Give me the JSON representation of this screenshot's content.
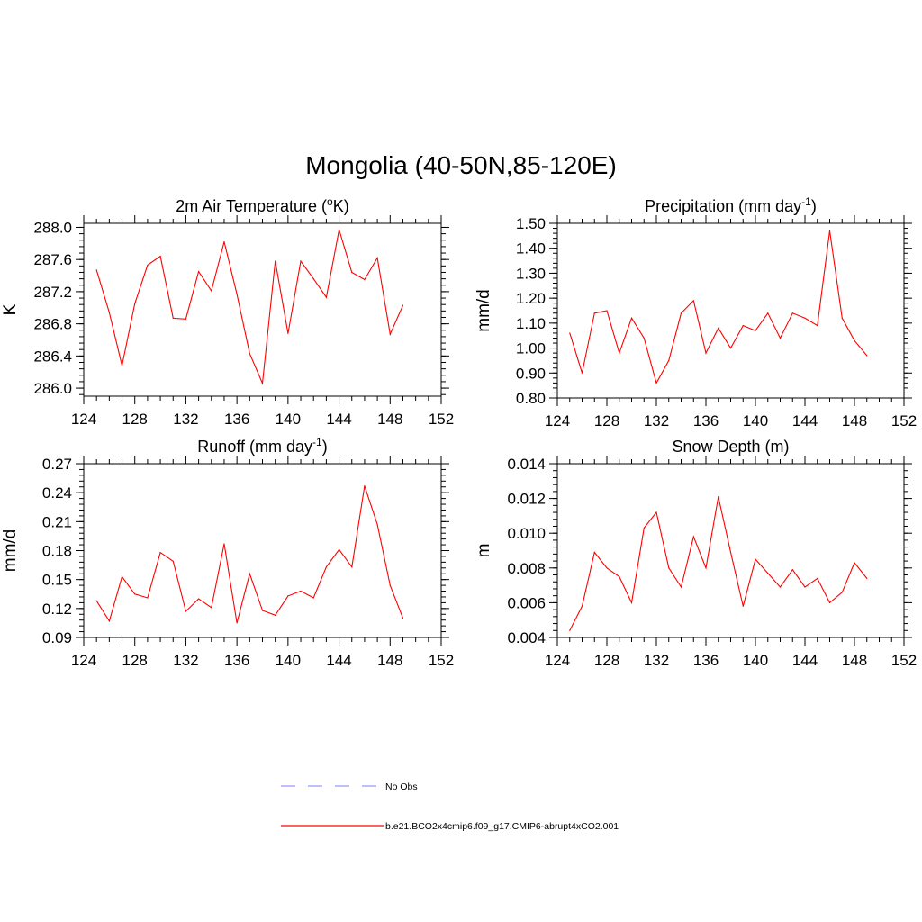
{
  "figure": {
    "title": "Mongolia (40-50N,85-120E)",
    "line_color": "#ff0000",
    "obs_color": "#9999ff"
  },
  "legend": {
    "entries": [
      {
        "label": "No Obs",
        "color": "#9999ff",
        "style": "dashed"
      },
      {
        "label": "b.e21.BCO2x4cmip6.f09_g17.CMIP6-abrupt4xCO2.001",
        "color": "#ff0000",
        "style": "solid"
      }
    ]
  },
  "chart_data": [
    {
      "type": "line",
      "title": "2m Air Temperature (",
      "title_sup": "o",
      "title_suffix": "K)",
      "ylabel": "K",
      "xlim": [
        124,
        152
      ],
      "ylim": [
        285.9,
        288.05
      ],
      "xticks": [
        "124",
        "128",
        "132",
        "136",
        "140",
        "144",
        "148",
        "152"
      ],
      "yticks": [
        "286.0",
        "286.4",
        "286.8",
        "287.2",
        "287.6",
        "288.0"
      ],
      "series": [
        {
          "x": [
            125,
            126,
            127,
            128,
            129,
            130,
            131,
            132,
            133,
            134,
            135,
            136,
            137,
            138,
            139,
            140,
            141,
            142,
            143,
            144,
            145,
            146,
            147,
            148,
            149
          ],
          "values": [
            287.47,
            286.94,
            286.28,
            287.05,
            287.53,
            287.64,
            286.87,
            286.86,
            287.45,
            287.21,
            287.82,
            287.17,
            286.43,
            286.06,
            287.58,
            286.68,
            287.58,
            287.36,
            287.13,
            287.97,
            287.44,
            287.35,
            287.62,
            286.67,
            287.03
          ]
        }
      ]
    },
    {
      "type": "line",
      "title": "Precipitation (mm day",
      "title_sup": "-1",
      "title_suffix": ")",
      "ylabel": "mm/d",
      "xlim": [
        124,
        152
      ],
      "ylim": [
        0.8,
        1.5
      ],
      "xticks": [
        "124",
        "128",
        "132",
        "136",
        "140",
        "144",
        "148",
        "152"
      ],
      "yticks": [
        "0.80",
        "0.90",
        "1.00",
        "1.10",
        "1.20",
        "1.30",
        "1.40",
        "1.50"
      ],
      "series": [
        {
          "x": [
            125,
            126,
            127,
            128,
            129,
            130,
            131,
            132,
            133,
            134,
            135,
            136,
            137,
            138,
            139,
            140,
            141,
            142,
            143,
            144,
            145,
            146,
            147,
            148,
            149
          ],
          "values": [
            1.06,
            0.9,
            1.14,
            1.15,
            0.98,
            1.12,
            1.04,
            0.86,
            0.95,
            1.14,
            1.19,
            0.98,
            1.08,
            1.0,
            1.09,
            1.07,
            1.14,
            1.04,
            1.14,
            1.12,
            1.09,
            1.47,
            1.12,
            1.03,
            0.97
          ]
        }
      ]
    },
    {
      "type": "line",
      "title": "Runoff (mm day",
      "title_sup": "-1",
      "title_suffix": ")",
      "ylabel": "mm/d",
      "xlim": [
        124,
        152
      ],
      "ylim": [
        0.09,
        0.27
      ],
      "xticks": [
        "124",
        "128",
        "132",
        "136",
        "140",
        "144",
        "148",
        "152"
      ],
      "yticks": [
        "0.09",
        "0.12",
        "0.15",
        "0.18",
        "0.21",
        "0.24",
        "0.27"
      ],
      "series": [
        {
          "x": [
            125,
            126,
            127,
            128,
            129,
            130,
            131,
            132,
            133,
            134,
            135,
            136,
            137,
            138,
            139,
            140,
            141,
            142,
            143,
            144,
            145,
            146,
            147,
            148,
            149
          ],
          "values": [
            0.128,
            0.107,
            0.153,
            0.135,
            0.131,
            0.178,
            0.169,
            0.117,
            0.13,
            0.121,
            0.187,
            0.105,
            0.156,
            0.118,
            0.113,
            0.133,
            0.138,
            0.131,
            0.163,
            0.181,
            0.163,
            0.247,
            0.207,
            0.144,
            0.11
          ]
        }
      ]
    },
    {
      "type": "line",
      "title": "Snow Depth (m)",
      "title_sup": "",
      "title_suffix": "",
      "ylabel": "m",
      "xlim": [
        124,
        152
      ],
      "ylim": [
        0.004,
        0.014
      ],
      "xticks": [
        "124",
        "128",
        "132",
        "136",
        "140",
        "144",
        "148",
        "152"
      ],
      "yticks": [
        "0.004",
        "0.006",
        "0.008",
        "0.010",
        "0.012",
        "0.014"
      ],
      "series": [
        {
          "x": [
            125,
            126,
            127,
            128,
            129,
            130,
            131,
            132,
            133,
            134,
            135,
            136,
            137,
            138,
            139,
            140,
            141,
            142,
            143,
            144,
            145,
            146,
            147,
            148,
            149
          ],
          "values": [
            0.0044,
            0.0058,
            0.0089,
            0.008,
            0.0075,
            0.006,
            0.0103,
            0.0112,
            0.008,
            0.0069,
            0.0098,
            0.008,
            0.0121,
            0.0089,
            0.0058,
            0.0085,
            0.0077,
            0.0069,
            0.0079,
            0.0069,
            0.0074,
            0.006,
            0.0066,
            0.0083,
            0.0074
          ]
        }
      ]
    }
  ]
}
